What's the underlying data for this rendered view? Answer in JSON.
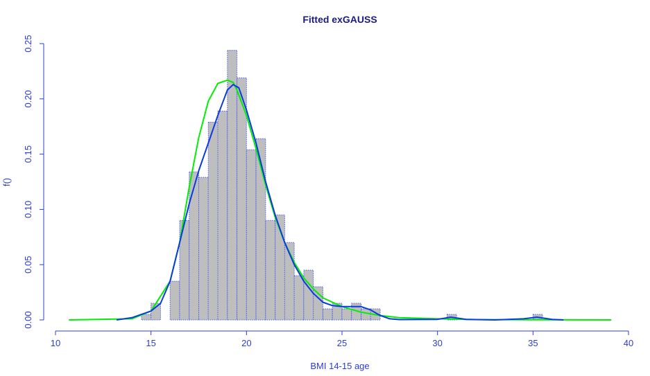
{
  "chart_data": {
    "type": "bar",
    "title": "Fitted exGAUSS",
    "xlabel": "BMI 14-15 age",
    "ylabel": "f()",
    "xlim": [
      10,
      40
    ],
    "ylim": [
      0,
      0.25
    ],
    "xticks": [
      "10",
      "15",
      "20",
      "25",
      "30",
      "35",
      "40"
    ],
    "yticks": [
      "0.00",
      "0.05",
      "0.10",
      "0.15",
      "0.20",
      "0.25"
    ],
    "grid": false,
    "colors": {
      "bar_fill": "#bebebe",
      "bar_border": "#4a5cf0",
      "fitted": "#00ee00",
      "density": "#0a3ae0",
      "axis": "#2b3cd6",
      "title": "#1a1a80"
    },
    "histogram": {
      "bin_width": 0.5,
      "bins": [
        [
          14.5,
          0.005
        ],
        [
          15.0,
          0.015
        ],
        [
          15.5,
          0.0
        ],
        [
          16.0,
          0.035
        ],
        [
          16.5,
          0.09
        ],
        [
          17.0,
          0.134
        ],
        [
          17.5,
          0.129
        ],
        [
          18.0,
          0.179
        ],
        [
          18.5,
          0.189
        ],
        [
          19.0,
          0.244
        ],
        [
          19.5,
          0.219
        ],
        [
          20.0,
          0.154
        ],
        [
          20.5,
          0.164
        ],
        [
          21.0,
          0.09
        ],
        [
          21.5,
          0.095
        ],
        [
          22.0,
          0.07
        ],
        [
          22.5,
          0.04
        ],
        [
          23.0,
          0.045
        ],
        [
          23.5,
          0.03
        ],
        [
          24.0,
          0.01
        ],
        [
          24.5,
          0.015
        ],
        [
          25.0,
          0.01
        ],
        [
          25.5,
          0.015
        ],
        [
          26.0,
          0.01
        ],
        [
          26.5,
          0.01
        ],
        [
          30.5,
          0.005
        ],
        [
          35.0,
          0.005
        ]
      ]
    },
    "series": [
      {
        "type": "line",
        "color": "#00ee00",
        "points": [
          [
            10.7,
            0
          ],
          [
            14,
            0.001
          ],
          [
            15,
            0.008
          ],
          [
            16,
            0.035
          ],
          [
            16.5,
            0.07
          ],
          [
            17,
            0.12
          ],
          [
            17.5,
            0.165
          ],
          [
            18,
            0.198
          ],
          [
            18.5,
            0.214
          ],
          [
            19,
            0.217
          ],
          [
            19.3,
            0.215
          ],
          [
            19.5,
            0.208
          ],
          [
            20,
            0.185
          ],
          [
            20.5,
            0.155
          ],
          [
            21,
            0.122
          ],
          [
            21.5,
            0.093
          ],
          [
            22,
            0.07
          ],
          [
            22.5,
            0.052
          ],
          [
            23,
            0.038
          ],
          [
            23.5,
            0.028
          ],
          [
            24,
            0.02
          ],
          [
            25,
            0.012
          ],
          [
            26,
            0.007
          ],
          [
            27,
            0.004
          ],
          [
            28,
            0.002
          ],
          [
            30,
            0.001
          ],
          [
            32,
            0.0003
          ],
          [
            39.1,
            0
          ]
        ]
      },
      {
        "type": "line",
        "color": "#0a3ae0",
        "points": [
          [
            13.2,
            0
          ],
          [
            14,
            0.002
          ],
          [
            15,
            0.008
          ],
          [
            15.5,
            0.015
          ],
          [
            16,
            0.035
          ],
          [
            16.5,
            0.07
          ],
          [
            17,
            0.105
          ],
          [
            17.5,
            0.135
          ],
          [
            18,
            0.16
          ],
          [
            18.5,
            0.185
          ],
          [
            19,
            0.208
          ],
          [
            19.3,
            0.213
          ],
          [
            19.6,
            0.21
          ],
          [
            20,
            0.19
          ],
          [
            20.5,
            0.16
          ],
          [
            21,
            0.125
          ],
          [
            21.5,
            0.095
          ],
          [
            22,
            0.07
          ],
          [
            22.5,
            0.05
          ],
          [
            23,
            0.035
          ],
          [
            23.5,
            0.024
          ],
          [
            24,
            0.016
          ],
          [
            24.5,
            0.013
          ],
          [
            25,
            0.012
          ],
          [
            25.5,
            0.012
          ],
          [
            26,
            0.012
          ],
          [
            26.5,
            0.009
          ],
          [
            27,
            0.004
          ],
          [
            27.5,
            0.001
          ],
          [
            28,
            0.0003
          ],
          [
            30,
            0.0005
          ],
          [
            30.7,
            0.0025
          ],
          [
            31.5,
            0.0005
          ],
          [
            33,
            0
          ],
          [
            34.5,
            0.001
          ],
          [
            35.2,
            0.0025
          ],
          [
            36,
            0.0005
          ],
          [
            36.6,
            0
          ]
        ]
      }
    ]
  }
}
